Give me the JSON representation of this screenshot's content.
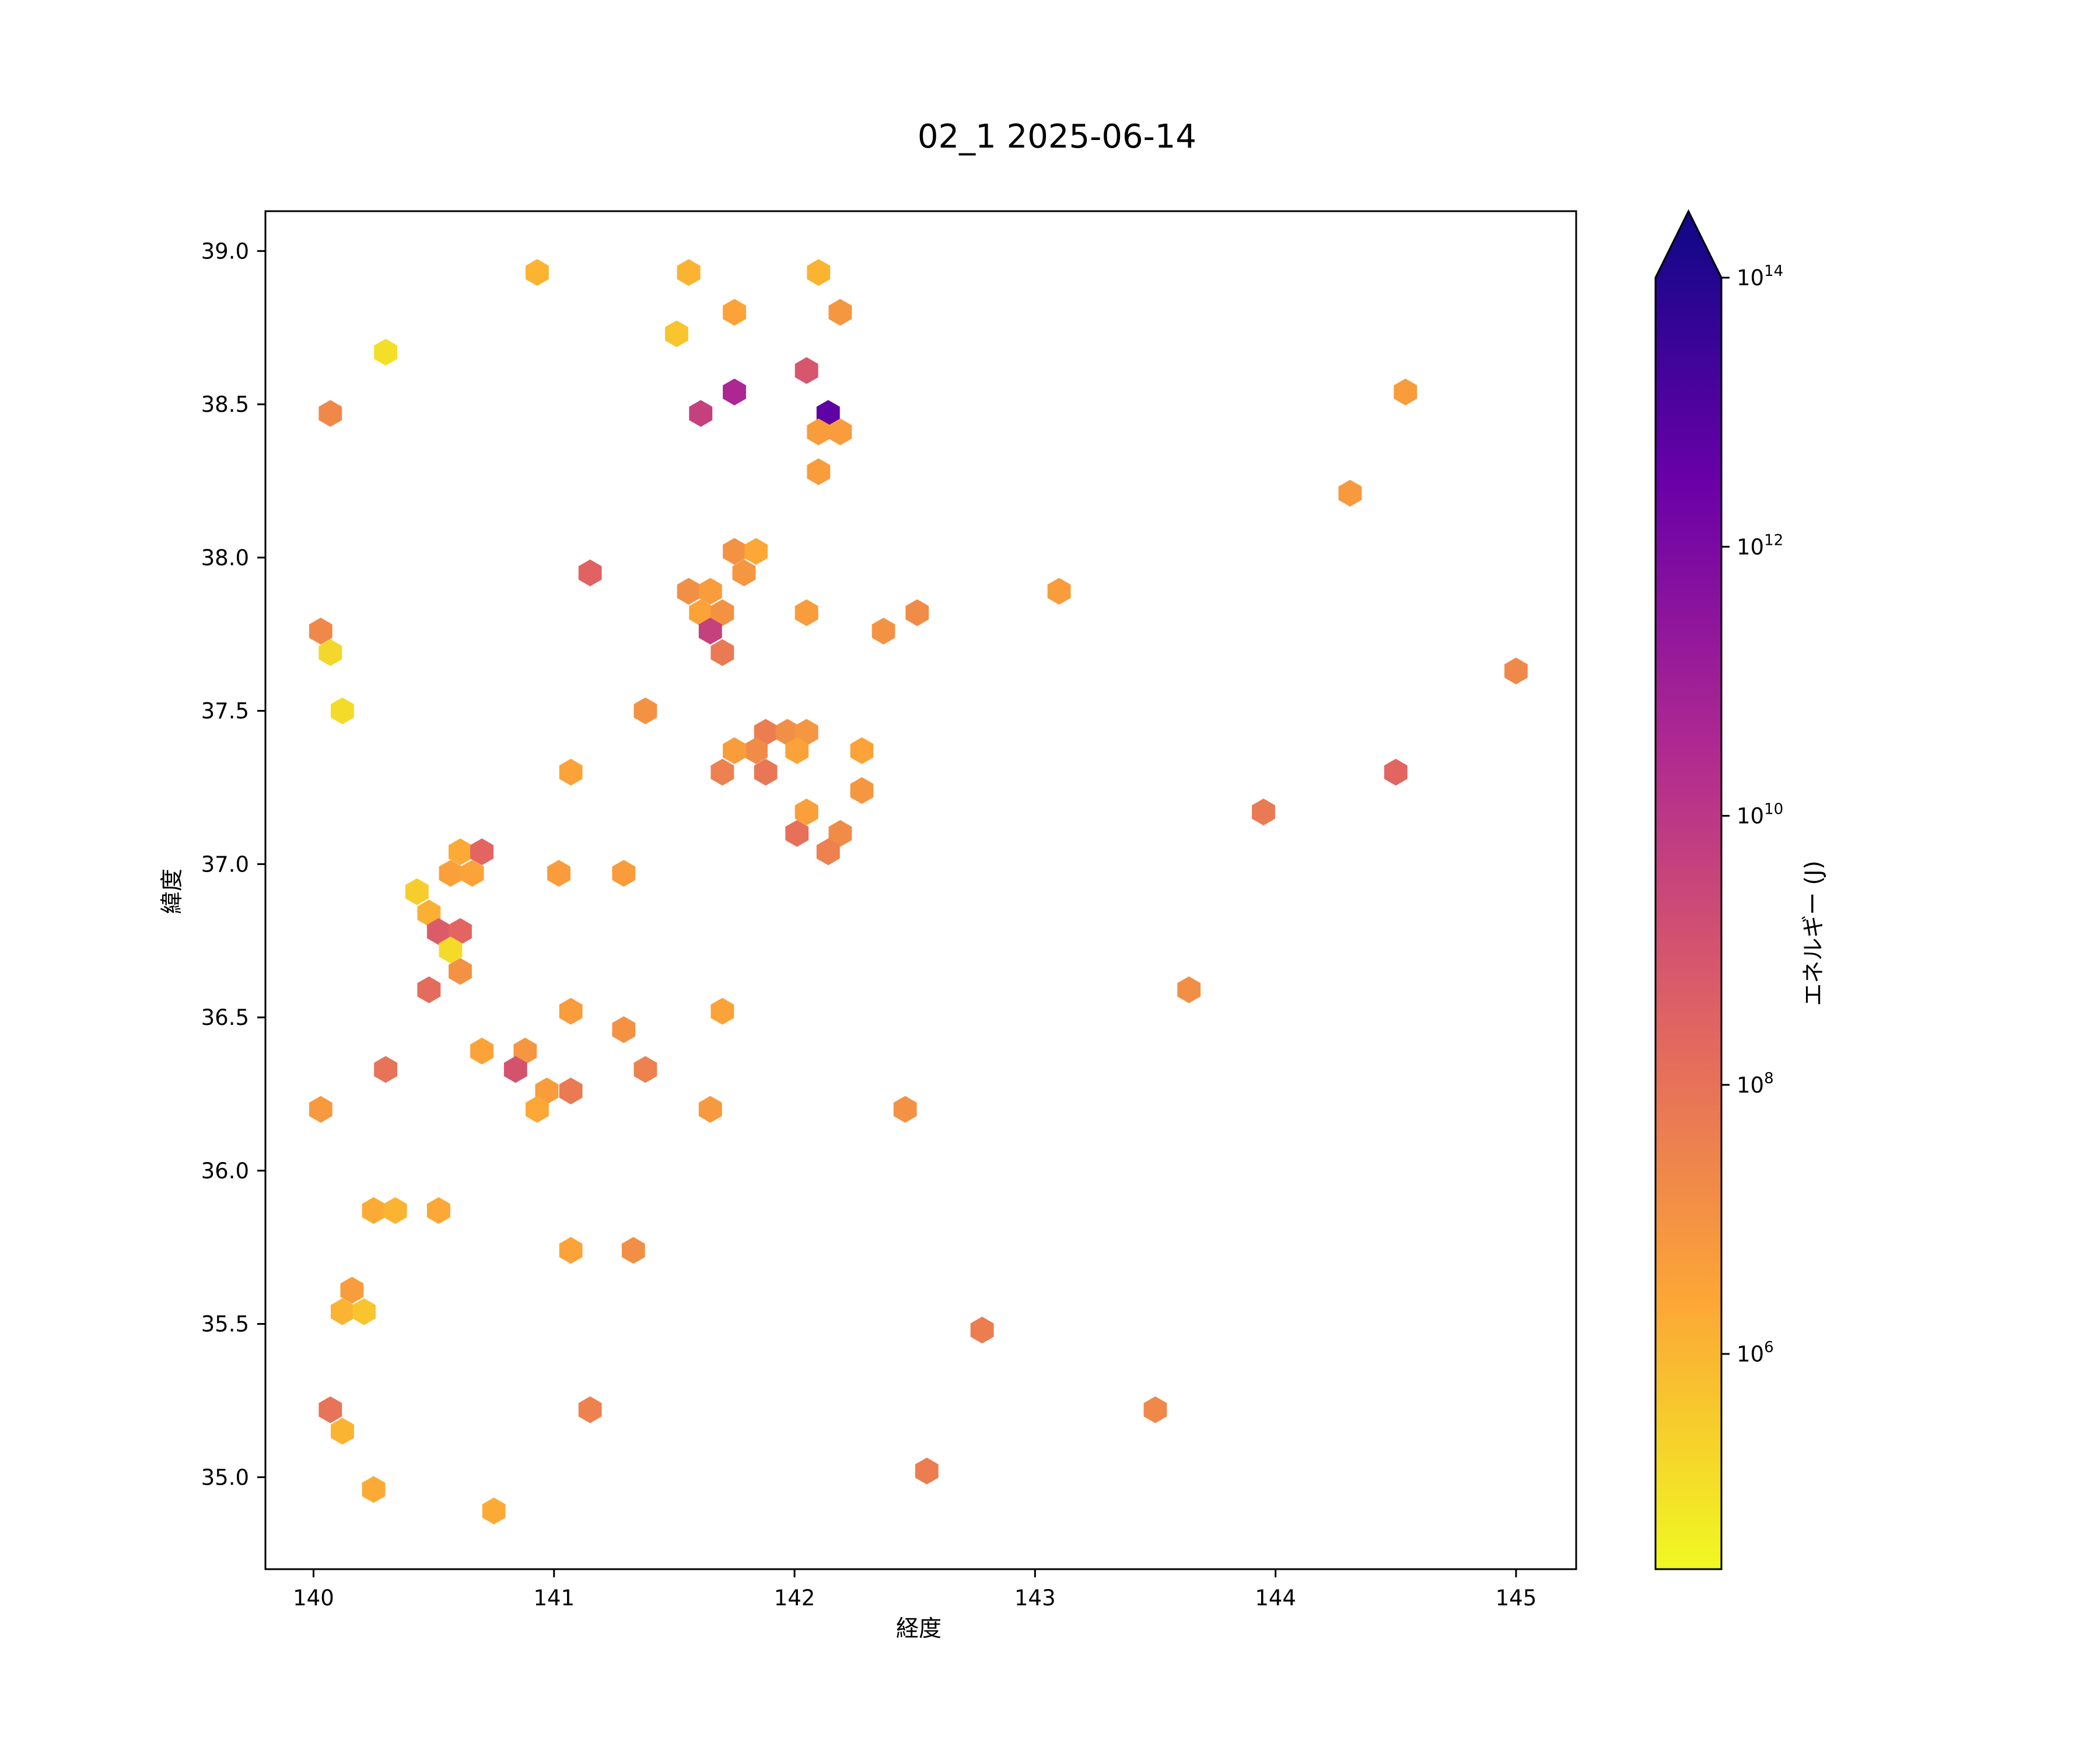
{
  "chart_data": {
    "type": "heatmap",
    "subtype": "hexbin",
    "title": "02_1 2025-06-14",
    "xlabel": "経度",
    "ylabel": "緯度",
    "xlim": [
      139.8,
      145.25
    ],
    "ylim": [
      34.7,
      39.13
    ],
    "xticks": [
      140,
      141,
      142,
      143,
      144,
      145
    ],
    "yticks": [
      35.0,
      35.5,
      36.0,
      36.5,
      37.0,
      37.5,
      38.0,
      38.5,
      39.0
    ],
    "grid": false,
    "colorbar": {
      "label": "エネルギー (J)",
      "scale": "log",
      "colormap": "plasma",
      "range_log10": [
        4.4,
        14
      ],
      "extend": "max",
      "ticks": [
        {
          "exp": 6,
          "base": "10",
          "sup": "6"
        },
        {
          "exp": 8,
          "base": "10",
          "sup": "8"
        },
        {
          "exp": 10,
          "base": "10",
          "sup": "10"
        },
        {
          "exp": 12,
          "base": "10",
          "sup": "12"
        },
        {
          "exp": 14,
          "base": "10",
          "sup": "14"
        }
      ]
    },
    "colormap_stops": [
      "#0d0887",
      "#6a00a8",
      "#b12a90",
      "#e16462",
      "#fca636",
      "#f0f921"
    ],
    "value_unit": "log10 J",
    "points": [
      [
        140.93,
        38.93,
        6.0
      ],
      [
        141.56,
        38.93,
        6.0
      ],
      [
        142.1,
        38.93,
        6.0
      ],
      [
        141.51,
        38.73,
        5.6
      ],
      [
        141.75,
        38.8,
        6.4
      ],
      [
        142.19,
        38.8,
        6.8
      ],
      [
        140.3,
        38.67,
        5.0
      ],
      [
        140.07,
        38.47,
        7.2
      ],
      [
        141.61,
        38.47,
        9.4
      ],
      [
        141.75,
        38.54,
        10.3
      ],
      [
        142.05,
        38.61,
        8.7
      ],
      [
        142.14,
        38.47,
        12.3
      ],
      [
        142.1,
        38.41,
        6.6
      ],
      [
        142.19,
        38.41,
        6.6
      ],
      [
        142.1,
        38.28,
        6.6
      ],
      [
        144.54,
        38.54,
        6.6
      ],
      [
        144.31,
        38.21,
        6.7
      ],
      [
        141.15,
        37.95,
        8.3
      ],
      [
        141.75,
        38.02,
        6.9
      ],
      [
        141.84,
        38.02,
        6.3
      ],
      [
        141.79,
        37.95,
        6.8
      ],
      [
        141.56,
        37.89,
        7.0
      ],
      [
        141.65,
        37.89,
        6.6
      ],
      [
        141.61,
        37.82,
        6.4
      ],
      [
        141.7,
        37.82,
        6.9
      ],
      [
        141.65,
        37.76,
        9.4
      ],
      [
        141.7,
        37.69,
        7.6
      ],
      [
        142.05,
        37.82,
        6.6
      ],
      [
        142.37,
        37.76,
        6.9
      ],
      [
        142.51,
        37.82,
        7.1
      ],
      [
        143.1,
        37.89,
        6.6
      ],
      [
        140.03,
        37.76,
        7.2
      ],
      [
        140.07,
        37.69,
        5.2
      ],
      [
        140.12,
        37.5,
        5.1
      ],
      [
        141.38,
        37.5,
        6.9
      ],
      [
        141.07,
        37.3,
        6.4
      ],
      [
        141.88,
        37.43,
        7.5
      ],
      [
        141.97,
        37.43,
        7.0
      ],
      [
        142.05,
        37.43,
        6.8
      ],
      [
        141.84,
        37.37,
        7.1
      ],
      [
        141.75,
        37.37,
        6.6
      ],
      [
        142.01,
        37.37,
        6.4
      ],
      [
        142.28,
        37.37,
        6.4
      ],
      [
        141.7,
        37.3,
        7.4
      ],
      [
        141.88,
        37.3,
        7.7
      ],
      [
        142.05,
        37.17,
        6.5
      ],
      [
        142.28,
        37.24,
        6.8
      ],
      [
        142.01,
        37.1,
        7.9
      ],
      [
        142.19,
        37.1,
        7.1
      ],
      [
        142.14,
        37.04,
        7.4
      ],
      [
        143.95,
        37.17,
        7.6
      ],
      [
        144.5,
        37.3,
        8.2
      ],
      [
        145.0,
        37.63,
        7.2
      ],
      [
        140.61,
        37.04,
        6.2
      ],
      [
        140.7,
        37.04,
        8.2
      ],
      [
        140.57,
        36.97,
        6.5
      ],
      [
        140.66,
        36.97,
        6.4
      ],
      [
        141.02,
        36.97,
        6.6
      ],
      [
        141.29,
        36.97,
        6.6
      ],
      [
        140.43,
        36.91,
        5.4
      ],
      [
        140.48,
        36.84,
        6.1
      ],
      [
        140.52,
        36.78,
        8.5
      ],
      [
        140.61,
        36.78,
        8.2
      ],
      [
        140.57,
        36.72,
        5.1
      ],
      [
        140.61,
        36.65,
        6.9
      ],
      [
        140.48,
        36.59,
        8.0
      ],
      [
        141.07,
        36.52,
        6.6
      ],
      [
        141.7,
        36.52,
        6.4
      ],
      [
        143.64,
        36.59,
        7.0
      ],
      [
        141.29,
        36.46,
        6.9
      ],
      [
        140.7,
        36.39,
        6.4
      ],
      [
        140.88,
        36.39,
        6.8
      ],
      [
        140.3,
        36.33,
        7.8
      ],
      [
        140.84,
        36.33,
        8.8
      ],
      [
        141.38,
        36.33,
        7.4
      ],
      [
        140.97,
        36.26,
        6.6
      ],
      [
        141.07,
        36.26,
        7.6
      ],
      [
        140.93,
        36.2,
        6.3
      ],
      [
        140.03,
        36.2,
        6.7
      ],
      [
        141.65,
        36.2,
        6.7
      ],
      [
        142.46,
        36.2,
        6.9
      ],
      [
        140.25,
        35.87,
        6.2
      ],
      [
        140.34,
        35.87,
        6.0
      ],
      [
        140.52,
        35.87,
        6.3
      ],
      [
        141.07,
        35.74,
        6.4
      ],
      [
        141.33,
        35.74,
        7.0
      ],
      [
        140.16,
        35.61,
        6.6
      ],
      [
        140.12,
        35.54,
        6.0
      ],
      [
        140.21,
        35.54,
        5.6
      ],
      [
        142.78,
        35.48,
        7.5
      ],
      [
        140.07,
        35.22,
        7.8
      ],
      [
        141.15,
        35.22,
        7.4
      ],
      [
        143.5,
        35.22,
        7.2
      ],
      [
        140.12,
        35.15,
        6.0
      ],
      [
        142.55,
        35.02,
        7.5
      ],
      [
        140.25,
        34.96,
        6.2
      ],
      [
        140.75,
        34.89,
        6.2
      ]
    ]
  }
}
